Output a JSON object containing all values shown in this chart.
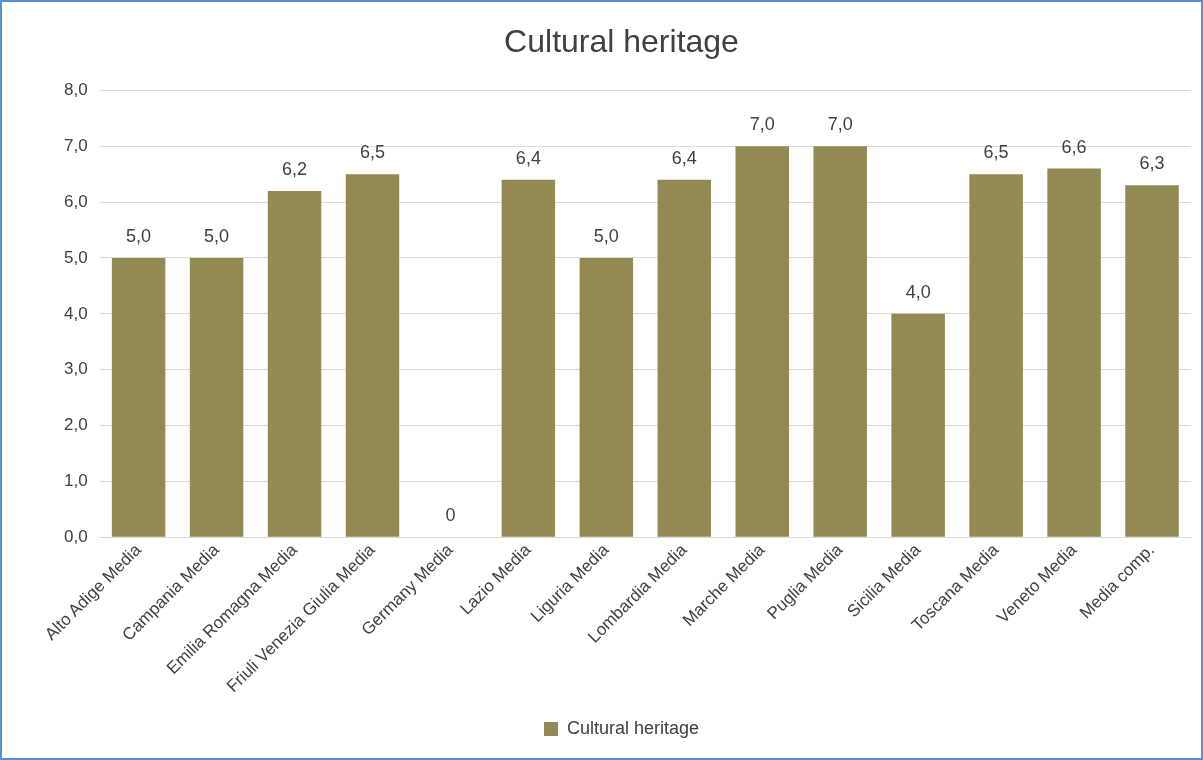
{
  "chart_data": {
    "type": "bar",
    "title": "Cultural heritage",
    "categories": [
      "Alto Adige Media",
      "Campania Media",
      "Emilia Romagna Media",
      "Friuli Venezia Giulia Media",
      "Germany Media",
      "Lazio Media",
      "Liguria Media",
      "Lombardia Media",
      "Marche Media",
      "Puglia Media",
      "Sicilia Media",
      "Toscana Media",
      "Veneto Media",
      "Media comp."
    ],
    "series": [
      {
        "name": "Cultural heritage",
        "color": "#938953",
        "values": [
          5.0,
          5.0,
          6.2,
          6.5,
          0,
          6.4,
          5.0,
          6.4,
          7.0,
          7.0,
          4.0,
          6.5,
          6.6,
          6.3
        ],
        "value_labels": [
          "5,0",
          "5,0",
          "6,2",
          "6,5",
          "0",
          "6,4",
          "5,0",
          "6,4",
          "7,0",
          "7,0",
          "4,0",
          "6,5",
          "6,6",
          "6,3"
        ]
      }
    ],
    "ylim": [
      0,
      8
    ],
    "yticks": [
      {
        "value": 0,
        "label": "0,0"
      },
      {
        "value": 1,
        "label": "1,0"
      },
      {
        "value": 2,
        "label": "2,0"
      },
      {
        "value": 3,
        "label": "3,0"
      },
      {
        "value": 4,
        "label": "4,0"
      },
      {
        "value": 5,
        "label": "5,0"
      },
      {
        "value": 6,
        "label": "6,0"
      },
      {
        "value": 7,
        "label": "7,0"
      },
      {
        "value": 8,
        "label": "8,0"
      }
    ],
    "grid": "y",
    "legend": "bottom"
  }
}
